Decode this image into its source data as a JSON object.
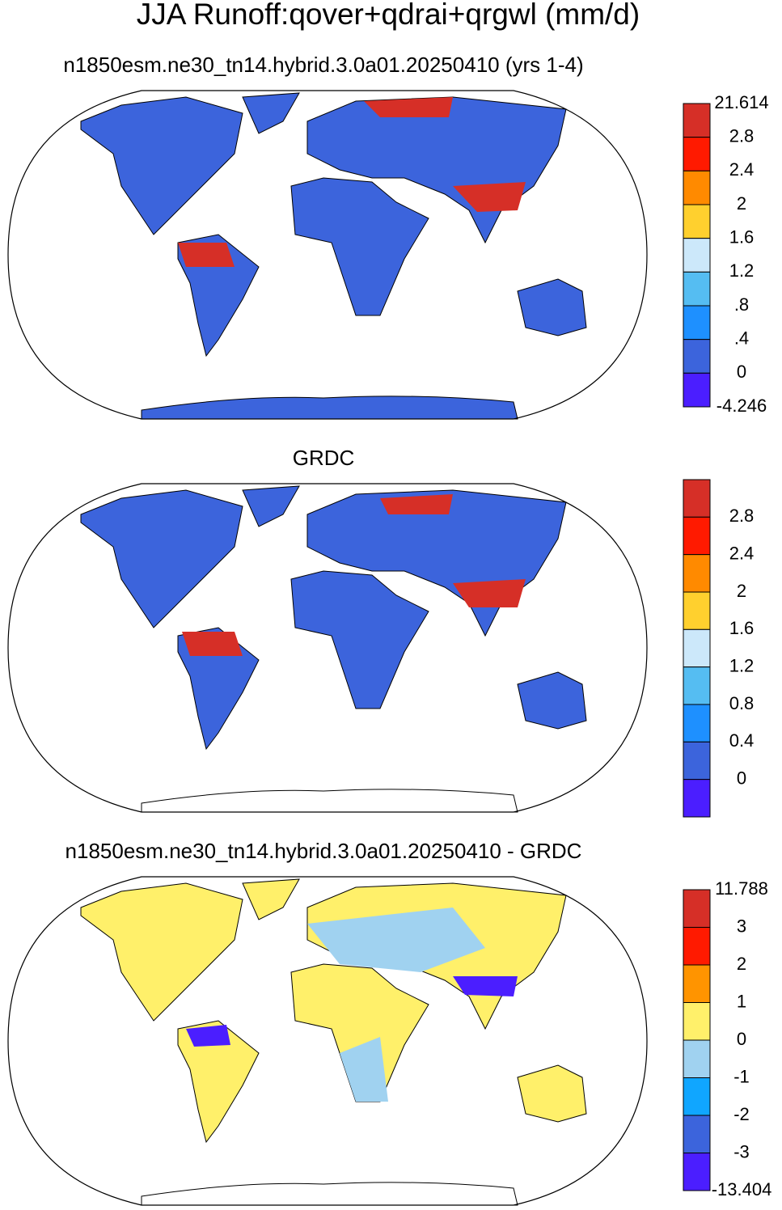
{
  "title": "JJA Runoff:qover+qdrai+qrgwl (mm/d)",
  "panels": [
    {
      "subtitle": "n1850esm.ne30_tn14.hybrid.3.0a01.20250410 (yrs 1-4)",
      "colorbar": {
        "colors": [
          "#d62f27",
          "#ff1a00",
          "#ff8a00",
          "#ffd02e",
          "#cce8fa",
          "#55bdf2",
          "#1e90ff",
          "#3c64dc",
          "#4b1eff"
        ],
        "labels": [
          "21.614",
          "2.8",
          "2.4",
          "2",
          "1.6",
          "1.2",
          ".8",
          ".4",
          "0",
          "-4.246"
        ]
      }
    },
    {
      "subtitle": "GRDC",
      "colorbar": {
        "colors": [
          "#d62f27",
          "#ff1a00",
          "#ff8a00",
          "#ffd02e",
          "#cce8fa",
          "#55bdf2",
          "#1e90ff",
          "#3c64dc",
          "#4b1eff"
        ],
        "labels": [
          "2.8",
          "2.4",
          "2",
          "1.6",
          "1.2",
          "0.8",
          "0.4",
          "0"
        ]
      }
    },
    {
      "subtitle": "n1850esm.ne30_tn14.hybrid.3.0a01.20250410 - GRDC",
      "colorbar": {
        "colors": [
          "#d62f27",
          "#ff1a00",
          "#ff9400",
          "#fff06a",
          "#a0d2f0",
          "#10a6ff",
          "#3c64dc",
          "#4b1eff"
        ],
        "labels": [
          "11.788",
          "3",
          "2",
          "1",
          "0",
          "-1",
          "-2",
          "-3",
          "-13.404"
        ]
      }
    }
  ]
}
